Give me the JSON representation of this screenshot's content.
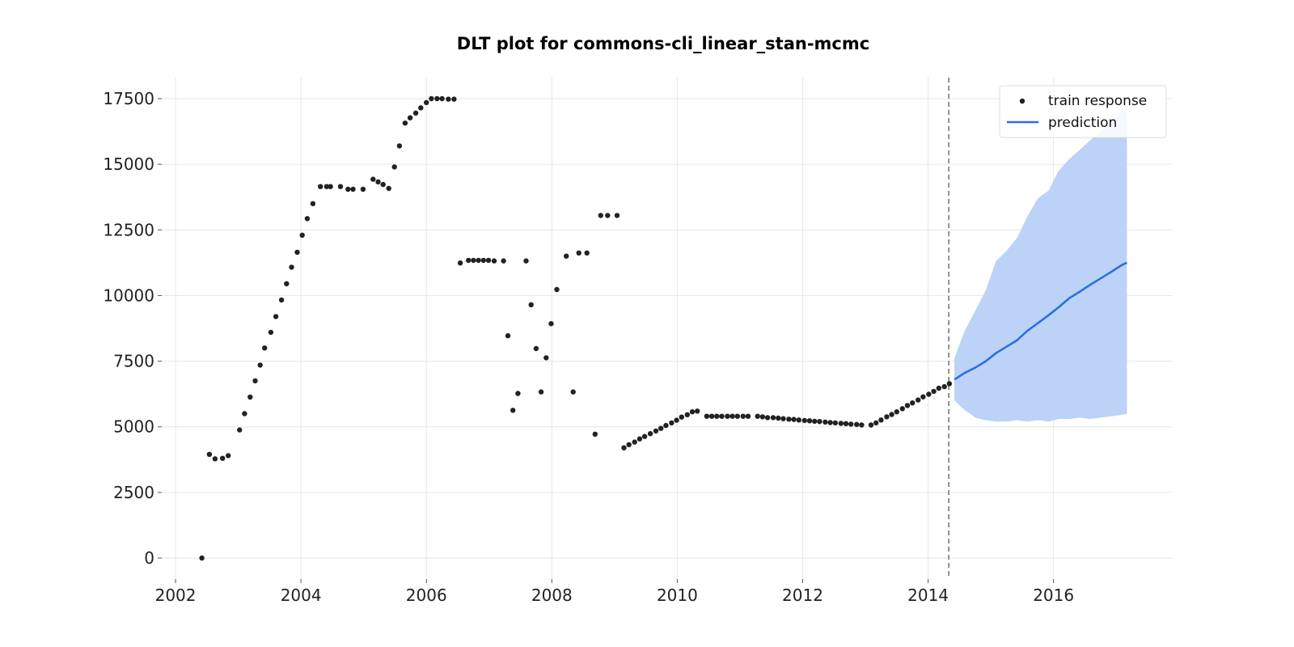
{
  "chart_data": {
    "type": "line",
    "title": "DLT plot for commons-cli_linear_stan-mcmc",
    "xlabel": "",
    "ylabel": "",
    "xlim": [
      2001.78,
      2017.9
    ],
    "ylim": [
      -800,
      18300
    ],
    "x_ticks": [
      2002,
      2004,
      2006,
      2008,
      2010,
      2012,
      2014,
      2016
    ],
    "x_tick_labels": [
      "2002",
      "2004",
      "2006",
      "2008",
      "2010",
      "2012",
      "2014",
      "2016"
    ],
    "y_ticks": [
      0,
      2500,
      5000,
      7500,
      10000,
      12500,
      15000,
      17500
    ],
    "y_tick_labels": [
      "0",
      "2500",
      "5000",
      "7500",
      "10000",
      "12500",
      "15000",
      "17500"
    ],
    "grid": true,
    "legend": {
      "position": "top-right",
      "entries": [
        {
          "label": "train response",
          "marker": "dot",
          "color": "#222222"
        },
        {
          "label": "prediction",
          "marker": "line",
          "color": "#2a6fe0"
        }
      ]
    },
    "forecast_start": 2014.33,
    "colors": {
      "train": "#222222",
      "prediction": "#2a6fe0",
      "band": "#bcd2f7",
      "cutoff": "#777777"
    },
    "series": [
      {
        "name": "train response",
        "kind": "scatter",
        "x": [
          2002.42,
          2002.54,
          2002.63,
          2002.75,
          2002.84,
          2003.02,
          2003.1,
          2003.19,
          2003.27,
          2003.35,
          2003.42,
          2003.52,
          2003.6,
          2003.69,
          2003.77,
          2003.85,
          2003.94,
          2004.02,
          2004.1,
          2004.19,
          2004.31,
          2004.41,
          2004.47,
          2004.63,
          2004.75,
          2004.83,
          2004.99,
          2005.15,
          2005.23,
          2005.31,
          2005.4,
          2005.49,
          2005.57,
          2005.66,
          2005.74,
          2005.83,
          2005.91,
          2006.0,
          2006.08,
          2006.17,
          2006.25,
          2006.35,
          2006.44,
          2006.54,
          2006.67,
          2006.75,
          2006.83,
          2006.91,
          2006.99,
          2007.08,
          2007.23,
          2007.3,
          2007.38,
          2007.46,
          2007.59,
          2007.67,
          2007.75,
          2007.83,
          2007.91,
          2007.99,
          2008.08,
          2008.23,
          2008.34,
          2008.43,
          2008.56,
          2008.69,
          2008.78,
          2008.89,
          2009.04,
          2009.15,
          2009.23,
          2009.32,
          2009.4,
          2009.48,
          2009.57,
          2009.66,
          2009.74,
          2009.82,
          2009.91,
          2009.99,
          2010.07,
          2010.16,
          2010.24,
          2010.32,
          2010.47,
          2010.55,
          2010.63,
          2010.71,
          2010.8,
          2010.88,
          2010.96,
          2011.05,
          2011.13,
          2011.28,
          2011.36,
          2011.44,
          2011.53,
          2011.61,
          2011.69,
          2011.78,
          2011.86,
          2011.94,
          2012.03,
          2012.11,
          2012.19,
          2012.27,
          2012.36,
          2012.44,
          2012.52,
          2012.61,
          2012.69,
          2012.77,
          2012.86,
          2012.94,
          2013.09,
          2013.17,
          2013.25,
          2013.34,
          2013.42,
          2013.5,
          2013.59,
          2013.67,
          2013.75,
          2013.84,
          2013.92,
          2014.01,
          2014.09,
          2014.17,
          2014.26,
          2014.34
        ],
        "y": [
          0,
          3950,
          3780,
          3800,
          3900,
          4880,
          5500,
          6130,
          6750,
          7350,
          8000,
          8600,
          9200,
          9830,
          10450,
          11080,
          11650,
          12300,
          12930,
          13500,
          14150,
          14150,
          14150,
          14150,
          14050,
          14050,
          14050,
          14430,
          14330,
          14230,
          14080,
          14900,
          15700,
          16570,
          16770,
          16950,
          17150,
          17350,
          17500,
          17500,
          17500,
          17480,
          17480,
          11240,
          11340,
          11340,
          11340,
          11340,
          11340,
          11320,
          11320,
          8470,
          5630,
          6270,
          11320,
          9650,
          7980,
          6330,
          7630,
          8930,
          10230,
          11500,
          6330,
          11620,
          11620,
          4720,
          13050,
          13050,
          13050,
          4200,
          4320,
          4420,
          4540,
          4630,
          4740,
          4840,
          4940,
          5050,
          5150,
          5250,
          5370,
          5460,
          5570,
          5600,
          5400,
          5400,
          5400,
          5400,
          5400,
          5400,
          5400,
          5400,
          5400,
          5400,
          5380,
          5350,
          5350,
          5330,
          5310,
          5290,
          5280,
          5260,
          5240,
          5230,
          5210,
          5200,
          5180,
          5160,
          5150,
          5130,
          5120,
          5100,
          5090,
          5070,
          5070,
          5150,
          5260,
          5380,
          5470,
          5570,
          5690,
          5810,
          5910,
          6020,
          6140,
          6240,
          6350,
          6470,
          6530,
          6640
        ]
      },
      {
        "name": "prediction",
        "kind": "line",
        "x": [
          2014.42,
          2014.58,
          2014.75,
          2014.92,
          2015.08,
          2015.25,
          2015.42,
          2015.58,
          2015.75,
          2015.92,
          2016.08,
          2016.25,
          2016.42,
          2016.58,
          2016.75,
          2016.92,
          2017.08,
          2017.17
        ],
        "y": [
          6800,
          7050,
          7250,
          7500,
          7800,
          8050,
          8300,
          8650,
          8950,
          9250,
          9550,
          9900,
          10150,
          10400,
          10650,
          10900,
          11150,
          11250
        ],
        "lower": [
          6000,
          5650,
          5350,
          5250,
          5200,
          5200,
          5250,
          5200,
          5250,
          5200,
          5300,
          5300,
          5350,
          5300,
          5350,
          5400,
          5450,
          5500
        ],
        "upper": [
          7600,
          8650,
          9400,
          10200,
          11300,
          11700,
          12200,
          13000,
          13700,
          14000,
          14750,
          15200,
          15550,
          15900,
          16250,
          16600,
          17000,
          17300
        ]
      }
    ]
  }
}
